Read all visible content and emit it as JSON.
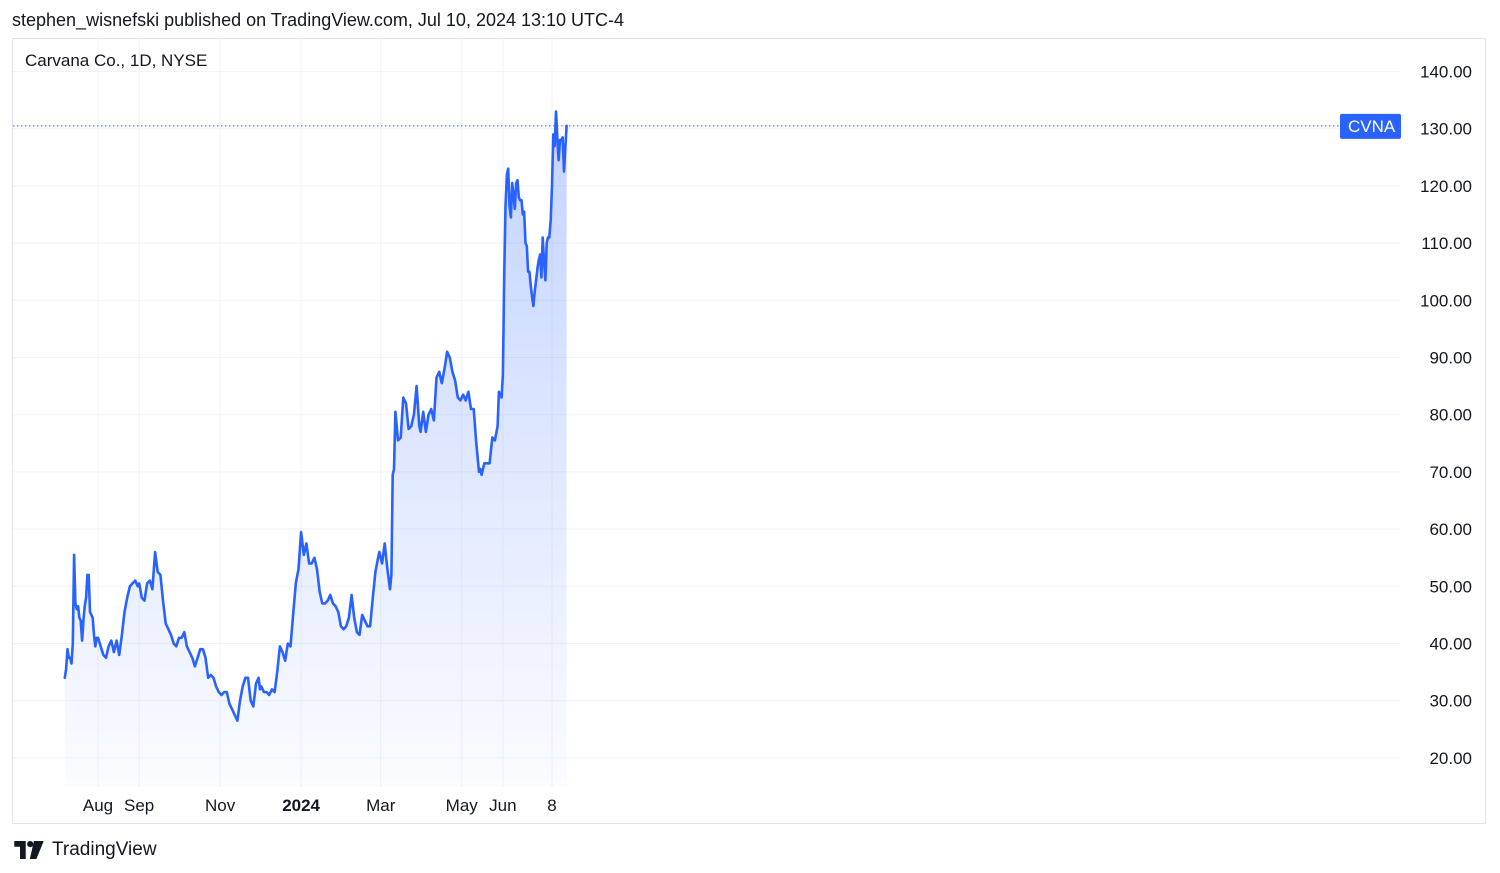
{
  "header": {
    "published_line": "stephen_wisnefski published on TradingView.com, Jul 10, 2024 13:10 UTC-4"
  },
  "footer": {
    "brand": "TradingView",
    "logo_icon": "tradingview-logo-icon"
  },
  "colors": {
    "line": "#2962ff",
    "area_top": "#2962ff",
    "grid": "#f0f3fa",
    "axis_text": "#131722",
    "price_label_bg": "#2962ff"
  },
  "chart_data": {
    "type": "area",
    "title": "Carvana Co., 1D, NYSE",
    "symbol_label": "CVNA",
    "last_price_marker": 130.5,
    "ylim": [
      15,
      145
    ],
    "y_ticks": [
      "20.00",
      "30.00",
      "40.00",
      "50.00",
      "60.00",
      "70.00",
      "80.00",
      "90.00",
      "100.00",
      "110.00",
      "120.00",
      "130.00",
      "140.00"
    ],
    "x_ticks": [
      {
        "label": "Aug",
        "date": "2023-08-01",
        "bold": false
      },
      {
        "label": "Sep",
        "date": "2023-09-01",
        "bold": false
      },
      {
        "label": "Nov",
        "date": "2023-11-01",
        "bold": false
      },
      {
        "label": "2024",
        "date": "2024-01-01",
        "bold": true
      },
      {
        "label": "Mar",
        "date": "2024-03-01",
        "bold": false
      },
      {
        "label": "May",
        "date": "2024-05-01",
        "bold": false
      },
      {
        "label": "Jun",
        "date": "2024-06-01",
        "bold": false
      },
      {
        "label": "8",
        "date": "2024-07-08",
        "bold": false
      }
    ],
    "grid": true,
    "series": [
      {
        "points": [
          [
            "2023-07-07",
            34.0
          ],
          [
            "2023-07-08",
            35.5
          ],
          [
            "2023-07-09",
            39.0
          ],
          [
            "2023-07-10",
            37.5
          ],
          [
            "2023-07-11",
            37.5
          ],
          [
            "2023-07-12",
            36.5
          ],
          [
            "2023-07-13",
            40.0
          ],
          [
            "2023-07-14",
            55.5
          ],
          [
            "2023-07-15",
            47.0
          ],
          [
            "2023-07-16",
            46.0
          ],
          [
            "2023-07-17",
            46.5
          ],
          [
            "2023-07-18",
            44.5
          ],
          [
            "2023-07-19",
            44.0
          ],
          [
            "2023-07-20",
            40.5
          ],
          [
            "2023-07-21",
            44.0
          ],
          [
            "2023-07-22",
            46.5
          ],
          [
            "2023-07-23",
            48.0
          ],
          [
            "2023-07-24",
            52.0
          ],
          [
            "2023-07-25",
            52.0
          ],
          [
            "2023-07-26",
            45.5
          ],
          [
            "2023-07-27",
            45.0
          ],
          [
            "2023-07-28",
            44.5
          ],
          [
            "2023-07-29",
            41.5
          ],
          [
            "2023-07-30",
            39.5
          ],
          [
            "2023-07-31",
            41.0
          ],
          [
            "2023-08-01",
            41.0
          ],
          [
            "2023-08-03",
            39.5
          ],
          [
            "2023-08-05",
            38.0
          ],
          [
            "2023-08-07",
            37.5
          ],
          [
            "2023-08-09",
            39.5
          ],
          [
            "2023-08-11",
            40.5
          ],
          [
            "2023-08-13",
            38.5
          ],
          [
            "2023-08-15",
            40.5
          ],
          [
            "2023-08-17",
            38.0
          ],
          [
            "2023-08-19",
            41.5
          ],
          [
            "2023-08-21",
            45.5
          ],
          [
            "2023-08-23",
            48.0
          ],
          [
            "2023-08-25",
            50.0
          ],
          [
            "2023-08-27",
            50.5
          ],
          [
            "2023-08-29",
            51.0
          ],
          [
            "2023-08-31",
            50.0
          ],
          [
            "2023-09-01",
            50.5
          ],
          [
            "2023-09-03",
            48.0
          ],
          [
            "2023-09-05",
            47.5
          ],
          [
            "2023-09-07",
            50.5
          ],
          [
            "2023-09-09",
            51.0
          ],
          [
            "2023-09-11",
            49.5
          ],
          [
            "2023-09-13",
            56.0
          ],
          [
            "2023-09-15",
            52.5
          ],
          [
            "2023-09-17",
            52.0
          ],
          [
            "2023-09-19",
            47.5
          ],
          [
            "2023-09-21",
            43.5
          ],
          [
            "2023-09-23",
            42.5
          ],
          [
            "2023-09-25",
            41.5
          ],
          [
            "2023-09-27",
            40.0
          ],
          [
            "2023-09-29",
            39.5
          ],
          [
            "2023-10-01",
            41.0
          ],
          [
            "2023-10-03",
            41.0
          ],
          [
            "2023-10-05",
            42.0
          ],
          [
            "2023-10-07",
            39.5
          ],
          [
            "2023-10-09",
            38.5
          ],
          [
            "2023-10-11",
            37.5
          ],
          [
            "2023-10-13",
            36.0
          ],
          [
            "2023-10-15",
            37.5
          ],
          [
            "2023-10-17",
            39.0
          ],
          [
            "2023-10-19",
            39.0
          ],
          [
            "2023-10-21",
            37.5
          ],
          [
            "2023-10-23",
            34.0
          ],
          [
            "2023-10-25",
            34.5
          ],
          [
            "2023-10-27",
            34.0
          ],
          [
            "2023-10-29",
            32.5
          ],
          [
            "2023-10-31",
            31.5
          ],
          [
            "2023-11-02",
            31.0
          ],
          [
            "2023-11-04",
            31.5
          ],
          [
            "2023-11-06",
            31.5
          ],
          [
            "2023-11-08",
            29.5
          ],
          [
            "2023-11-10",
            28.5
          ],
          [
            "2023-11-12",
            27.5
          ],
          [
            "2023-11-14",
            26.5
          ],
          [
            "2023-11-16",
            30.0
          ],
          [
            "2023-11-18",
            32.5
          ],
          [
            "2023-11-20",
            34.0
          ],
          [
            "2023-11-22",
            34.0
          ],
          [
            "2023-11-24",
            30.0
          ],
          [
            "2023-11-26",
            29.0
          ],
          [
            "2023-11-28",
            33.0
          ],
          [
            "2023-11-30",
            34.0
          ],
          [
            "2023-12-01",
            32.0
          ],
          [
            "2023-12-02",
            32.5
          ],
          [
            "2023-12-04",
            31.5
          ],
          [
            "2023-12-06",
            31.5
          ],
          [
            "2023-12-08",
            31.0
          ],
          [
            "2023-12-10",
            32.0
          ],
          [
            "2023-12-12",
            31.5
          ],
          [
            "2023-12-14",
            35.0
          ],
          [
            "2023-12-16",
            39.5
          ],
          [
            "2023-12-18",
            38.5
          ],
          [
            "2023-12-20",
            37.0
          ],
          [
            "2023-12-22",
            40.0
          ],
          [
            "2023-12-24",
            39.5
          ],
          [
            "2023-12-26",
            45.0
          ],
          [
            "2023-12-28",
            50.5
          ],
          [
            "2023-12-30",
            53.0
          ],
          [
            "2024-01-01",
            59.5
          ],
          [
            "2024-01-03",
            55.5
          ],
          [
            "2024-01-05",
            57.5
          ],
          [
            "2024-01-07",
            54.0
          ],
          [
            "2024-01-09",
            54.0
          ],
          [
            "2024-01-11",
            55.0
          ],
          [
            "2024-01-13",
            53.0
          ],
          [
            "2024-01-15",
            49.0
          ],
          [
            "2024-01-17",
            47.0
          ],
          [
            "2024-01-19",
            47.0
          ],
          [
            "2024-01-21",
            47.5
          ],
          [
            "2024-01-23",
            48.5
          ],
          [
            "2024-01-25",
            47.0
          ],
          [
            "2024-01-27",
            46.5
          ],
          [
            "2024-01-29",
            45.5
          ],
          [
            "2024-01-31",
            43.0
          ],
          [
            "2024-02-02",
            42.5
          ],
          [
            "2024-02-04",
            43.0
          ],
          [
            "2024-02-06",
            44.5
          ],
          [
            "2024-02-08",
            48.5
          ],
          [
            "2024-02-10",
            44.5
          ],
          [
            "2024-02-12",
            42.0
          ],
          [
            "2024-02-14",
            41.5
          ],
          [
            "2024-02-16",
            45.0
          ],
          [
            "2024-02-18",
            44.0
          ],
          [
            "2024-02-20",
            43.0
          ],
          [
            "2024-02-22",
            43.0
          ],
          [
            "2024-02-24",
            48.0
          ],
          [
            "2024-02-26",
            52.5
          ],
          [
            "2024-02-28",
            55.0
          ],
          [
            "2024-02-29",
            56.0
          ],
          [
            "2024-03-02",
            54.0
          ],
          [
            "2024-03-04",
            57.5
          ],
          [
            "2024-03-06",
            53.0
          ],
          [
            "2024-03-08",
            49.5
          ],
          [
            "2024-03-09",
            52.0
          ],
          [
            "2024-03-10",
            69.5
          ],
          [
            "2024-03-11",
            70.5
          ],
          [
            "2024-03-12",
            80.5
          ],
          [
            "2024-03-14",
            75.5
          ],
          [
            "2024-03-16",
            76.0
          ],
          [
            "2024-03-18",
            83.0
          ],
          [
            "2024-03-20",
            82.0
          ],
          [
            "2024-03-22",
            77.5
          ],
          [
            "2024-03-24",
            78.0
          ],
          [
            "2024-03-26",
            80.0
          ],
          [
            "2024-03-28",
            85.0
          ],
          [
            "2024-03-30",
            78.0
          ],
          [
            "2024-03-31",
            77.0
          ],
          [
            "2024-04-02",
            80.5
          ],
          [
            "2024-04-04",
            77.0
          ],
          [
            "2024-04-06",
            80.0
          ],
          [
            "2024-04-08",
            81.0
          ],
          [
            "2024-04-10",
            79.0
          ],
          [
            "2024-04-12",
            86.5
          ],
          [
            "2024-04-14",
            87.5
          ],
          [
            "2024-04-16",
            85.5
          ],
          [
            "2024-04-18",
            88.0
          ],
          [
            "2024-04-20",
            91.0
          ],
          [
            "2024-04-22",
            90.0
          ],
          [
            "2024-04-24",
            87.5
          ],
          [
            "2024-04-26",
            86.0
          ],
          [
            "2024-04-28",
            83.0
          ],
          [
            "2024-04-30",
            82.5
          ],
          [
            "2024-05-02",
            83.5
          ],
          [
            "2024-05-04",
            82.5
          ],
          [
            "2024-05-06",
            84.0
          ],
          [
            "2024-05-08",
            81.0
          ],
          [
            "2024-05-10",
            81.0
          ],
          [
            "2024-05-12",
            75.0
          ],
          [
            "2024-05-14",
            70.0
          ],
          [
            "2024-05-15",
            70.5
          ],
          [
            "2024-05-16",
            69.5
          ],
          [
            "2024-05-18",
            71.5
          ],
          [
            "2024-05-20",
            71.5
          ],
          [
            "2024-05-22",
            71.5
          ],
          [
            "2024-05-24",
            76.0
          ],
          [
            "2024-05-26",
            75.5
          ],
          [
            "2024-05-28",
            78.0
          ],
          [
            "2024-05-29",
            84.0
          ],
          [
            "2024-05-30",
            83.5
          ],
          [
            "2024-05-31",
            83.0
          ],
          [
            "2024-06-01",
            87.0
          ],
          [
            "2024-06-02",
            104.0
          ],
          [
            "2024-06-03",
            116.5
          ],
          [
            "2024-06-04",
            122.0
          ],
          [
            "2024-06-05",
            123.0
          ],
          [
            "2024-06-06",
            116.5
          ],
          [
            "2024-06-07",
            114.5
          ],
          [
            "2024-06-08",
            120.5
          ],
          [
            "2024-06-09",
            118.5
          ],
          [
            "2024-06-10",
            116.0
          ],
          [
            "2024-06-11",
            120.5
          ],
          [
            "2024-06-12",
            121.0
          ],
          [
            "2024-06-13",
            118.0
          ],
          [
            "2024-06-14",
            117.5
          ],
          [
            "2024-06-15",
            117.5
          ],
          [
            "2024-06-16",
            115.0
          ],
          [
            "2024-06-17",
            115.5
          ],
          [
            "2024-06-18",
            110.0
          ],
          [
            "2024-06-19",
            109.5
          ],
          [
            "2024-06-20",
            105.0
          ],
          [
            "2024-06-21",
            105.0
          ],
          [
            "2024-06-22",
            102.5
          ],
          [
            "2024-06-23",
            100.5
          ],
          [
            "2024-06-24",
            99.0
          ],
          [
            "2024-06-25",
            101.5
          ],
          [
            "2024-06-26",
            103.5
          ],
          [
            "2024-06-27",
            105.5
          ],
          [
            "2024-06-28",
            107.0
          ],
          [
            "2024-06-29",
            108.0
          ],
          [
            "2024-06-30",
            104.0
          ],
          [
            "2024-07-01",
            111.0
          ],
          [
            "2024-07-02",
            107.0
          ],
          [
            "2024-07-03",
            103.5
          ],
          [
            "2024-07-04",
            110.0
          ],
          [
            "2024-07-05",
            111.0
          ],
          [
            "2024-07-06",
            111.0
          ],
          [
            "2024-07-07",
            114.0
          ],
          [
            "2024-07-08",
            120.0
          ],
          [
            "2024-07-09",
            129.0
          ],
          [
            "2024-07-10",
            127.0
          ],
          [
            "2024-07-11",
            133.0
          ],
          [
            "2024-07-12",
            128.5
          ],
          [
            "2024-07-13",
            124.5
          ],
          [
            "2024-07-14",
            128.0
          ],
          [
            "2024-07-15",
            128.0
          ],
          [
            "2024-07-16",
            128.5
          ],
          [
            "2024-07-17",
            122.5
          ],
          [
            "2024-07-18",
            126.5
          ],
          [
            "2024-07-19",
            130.5
          ]
        ]
      }
    ]
  }
}
